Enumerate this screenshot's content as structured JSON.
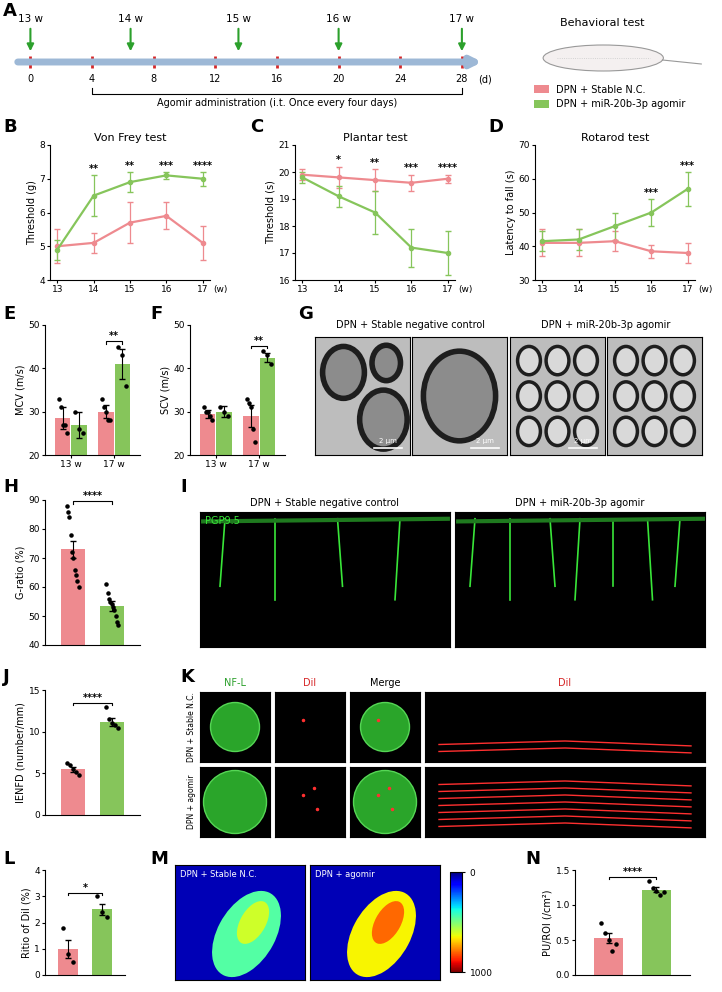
{
  "groups": [
    {
      "name": "DPN + Stable N.C.",
      "color": "#ee8a8f"
    },
    {
      "name": "DPN + miR-20b-3p agomir",
      "color": "#86c55b"
    }
  ],
  "timeline": {
    "panel": "A",
    "type": "timeline",
    "xlim": [
      -1,
      29.5
    ],
    "xticks": [
      0,
      4,
      8,
      12,
      16,
      20,
      24,
      28
    ],
    "xlabel": "(d)",
    "weeks": [
      {
        "day": 0,
        "label": "13 w"
      },
      {
        "day": 6.5,
        "label": "14 w"
      },
      {
        "day": 13.5,
        "label": "15 w"
      },
      {
        "day": 20,
        "label": "16 w"
      },
      {
        "day": 28,
        "label": "17 w"
      }
    ],
    "treatment": {
      "start": 4,
      "end": 28,
      "label": "Agomir administration (i.t. Once every four days)"
    },
    "header": "Behavioral test"
  },
  "chart_data": [
    {
      "panel": "B",
      "type": "line",
      "title": "Von Frey test",
      "xlabel": "(w)",
      "ylabel": "Threshold (g)",
      "x": [
        13,
        14,
        15,
        16,
        17
      ],
      "xlim": [
        12.8,
        17.2
      ],
      "xticks": [
        13,
        14,
        15,
        16,
        17
      ],
      "ylim": [
        4,
        8
      ],
      "yticks": [
        4,
        5,
        6,
        7,
        8
      ],
      "marker": "o",
      "series": [
        {
          "values": [
            5.0,
            5.1,
            5.7,
            5.9,
            5.1
          ],
          "errors": [
            0.5,
            0.3,
            0.6,
            0.4,
            0.5
          ]
        },
        {
          "values": [
            4.9,
            6.5,
            6.9,
            7.1,
            7.0
          ],
          "errors": [
            0.3,
            0.6,
            0.3,
            0.1,
            0.2
          ]
        }
      ],
      "significance": [
        "",
        "**",
        "**",
        "***",
        "****"
      ]
    },
    {
      "panel": "C",
      "type": "line",
      "title": "Plantar test",
      "xlabel": "(w)",
      "ylabel": "Threshold (s)",
      "x": [
        13,
        14,
        15,
        16,
        17
      ],
      "xlim": [
        12.8,
        17.2
      ],
      "xticks": [
        13,
        14,
        15,
        16,
        17
      ],
      "ylim": [
        16,
        21
      ],
      "yticks": [
        16,
        17,
        18,
        19,
        20,
        21
      ],
      "marker": "o",
      "series": [
        {
          "values": [
            19.9,
            19.8,
            19.7,
            19.6,
            19.75
          ],
          "errors": [
            0.2,
            0.4,
            0.4,
            0.3,
            0.15
          ]
        },
        {
          "values": [
            19.8,
            19.1,
            18.5,
            17.2,
            17.0
          ],
          "errors": [
            0.2,
            0.4,
            0.8,
            0.7,
            0.8
          ]
        }
      ],
      "significance": [
        "",
        "*",
        "**",
        "***",
        "****"
      ]
    },
    {
      "panel": "D",
      "type": "line",
      "title": "Rotarod test",
      "xlabel": "(w)",
      "ylabel": "Latency to fall (s)",
      "x": [
        13,
        14,
        15,
        16,
        17
      ],
      "xlim": [
        12.8,
        17.2
      ],
      "xticks": [
        13,
        14,
        15,
        16,
        17
      ],
      "ylim": [
        30,
        70
      ],
      "yticks": [
        30,
        40,
        50,
        60,
        70
      ],
      "marker": "o",
      "series": [
        {
          "values": [
            41,
            41,
            41.5,
            38.5,
            38
          ],
          "errors": [
            4,
            4,
            3,
            2,
            3
          ]
        },
        {
          "values": [
            41.5,
            42,
            46,
            50,
            57
          ],
          "errors": [
            3,
            3,
            4,
            4,
            5
          ]
        }
      ],
      "significance": [
        "",
        "",
        "",
        "***",
        "***"
      ]
    },
    {
      "panel": "E",
      "type": "bar",
      "ylabel": "MCV (m/s)",
      "categories": [
        "13 w",
        "17 w"
      ],
      "ylim": [
        20,
        50
      ],
      "yticks": [
        20,
        30,
        40,
        50
      ],
      "series": [
        {
          "values": [
            28.5,
            30
          ],
          "errors": [
            2.5,
            1.5
          ],
          "points": [
            [
              33,
              31,
              27,
              27,
              25
            ],
            [
              33,
              31,
              30,
              28,
              28
            ]
          ]
        },
        {
          "values": [
            27,
            41
          ],
          "errors": [
            3,
            3.5
          ],
          "points": [
            [
              30,
              26,
              25
            ],
            [
              45,
              43,
              36
            ]
          ]
        }
      ],
      "significance": [
        "",
        "**"
      ]
    },
    {
      "panel": "F",
      "type": "bar",
      "ylabel": "SCV (m/s)",
      "categories": [
        "13 w",
        "17 w"
      ],
      "ylim": [
        20,
        50
      ],
      "yticks": [
        20,
        30,
        40,
        50
      ],
      "series": [
        {
          "values": [
            29.5,
            29
          ],
          "errors": [
            1,
            2.5
          ],
          "points": [
            [
              31,
              30,
              30,
              29,
              28
            ],
            [
              33,
              32,
              31,
              26,
              23
            ]
          ]
        },
        {
          "values": [
            30,
            42.5
          ],
          "errors": [
            1.2,
            1
          ],
          "points": [
            [
              31,
              30,
              29
            ],
            [
              44,
              43,
              41
            ]
          ]
        }
      ],
      "significance": [
        "",
        "**"
      ]
    },
    {
      "panel": "H",
      "type": "bar",
      "ylabel": "G-ratio (%)",
      "tick_labels": "y",
      "ylim": [
        40,
        90
      ],
      "yticks": [
        40,
        50,
        60,
        70,
        80,
        90
      ],
      "values": [
        73,
        53.5
      ],
      "errors": [
        3,
        1.8
      ],
      "points": [
        [
          88,
          86,
          84,
          78,
          72,
          70,
          66,
          64,
          62,
          60
        ],
        [
          61,
          58,
          56,
          55,
          54,
          53,
          52,
          50,
          48,
          47
        ]
      ],
      "significance": "****"
    },
    {
      "panel": "J",
      "type": "bar",
      "ylabel": "IENFD (number/mm)",
      "tick_labels": "y",
      "ylim": [
        0,
        15
      ],
      "yticks": [
        0,
        5,
        10,
        15
      ],
      "values": [
        5.5,
        11.2
      ],
      "errors": [
        0.3,
        0.5
      ],
      "points": [
        [
          6.3,
          6,
          5.5,
          5.2,
          4.8
        ],
        [
          13,
          11.5,
          11,
          10.8,
          10.5
        ]
      ],
      "significance": "****"
    },
    {
      "panel": "L",
      "type": "bar",
      "ylabel": "Ritio of Dil (%)",
      "tick_labels": "y",
      "ylim": [
        0,
        4
      ],
      "yticks": [
        0,
        1,
        2,
        3,
        4
      ],
      "values": [
        1.0,
        2.5
      ],
      "errors": [
        0.35,
        0.2
      ],
      "points": [
        [
          1.8,
          0.8,
          0.5
        ],
        [
          3.0,
          2.4,
          2.2
        ]
      ],
      "significance": "*"
    },
    {
      "panel": "N",
      "type": "bar",
      "ylabel": "PU/ROI (/cm²)",
      "tick_labels": "y",
      "ylim": [
        0,
        1.5
      ],
      "yticks": [
        {
          "value": 0,
          "label": "0.0"
        },
        {
          "value": 0.5,
          "label": "0.5"
        },
        {
          "value": 1.0,
          "label": "1.0"
        },
        {
          "value": 1.5,
          "label": "1.5"
        }
      ],
      "values": [
        0.53,
        1.22
      ],
      "errors": [
        0.07,
        0.04
      ],
      "points": [
        [
          0.75,
          0.6,
          0.5,
          0.35,
          0.45
        ],
        [
          1.35,
          1.25,
          1.2,
          1.15,
          1.18
        ]
      ],
      "significance": "****"
    }
  ],
  "images": {
    "G": {
      "panel": "G",
      "titles": [
        "DPN + Stable negative control",
        "DPN + miR-20b-3p agomir"
      ],
      "scale_labels": [
        "2 μm",
        "2 μm",
        "2 μm"
      ]
    },
    "I": {
      "panel": "I",
      "titles": [
        "DPN + Stable negative control",
        "DPN + miR-20b-3p agomir"
      ],
      "stain": "PGP9.5"
    },
    "K": {
      "panel": "K",
      "columns": [
        "NF-L",
        "Dil",
        "Merge",
        "Dil"
      ],
      "rows": [
        "DPN + Stable N.C.",
        "DPN + agomir"
      ]
    },
    "M": {
      "panel": "M",
      "titles": [
        "DPN + Stable N.C.",
        "DPN + agomir"
      ],
      "colorbar": {
        "range": [
          0,
          1000
        ],
        "ticks": [
          0,
          1000
        ]
      }
    }
  }
}
